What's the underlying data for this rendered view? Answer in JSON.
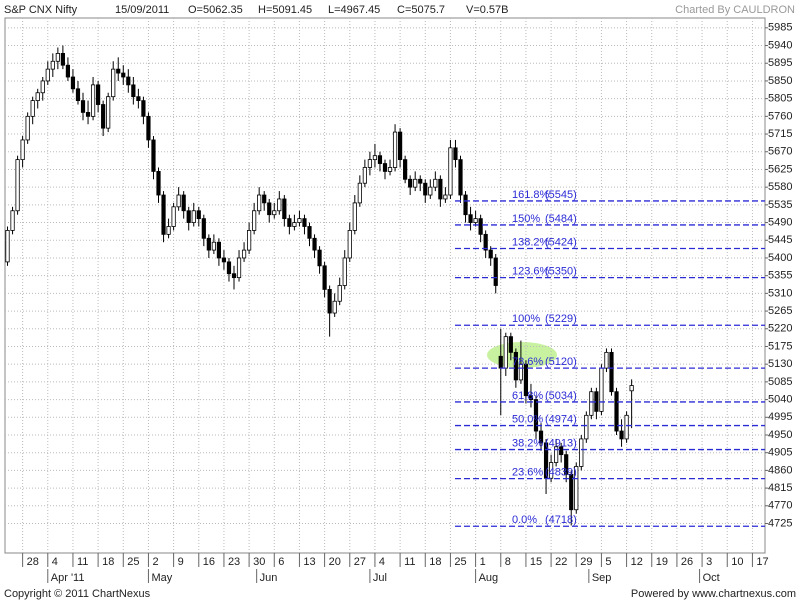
{
  "chart_data": {
    "type": "candlestick",
    "title": "S&P CNX Nifty",
    "date": "15/09/2011",
    "quote": [
      "O=5062.35",
      "H=5091.45",
      "L=4967.45",
      "C=5075.7",
      "V=0.57B"
    ],
    "credit": "Charted By CAULDRON",
    "up_color": "#ffffff",
    "down_color": "#000000",
    "grid": true,
    "ylim": [
      4650,
      6010
    ],
    "yticks": [
      4725,
      4770,
      4815,
      4860,
      4905,
      4950,
      4995,
      5040,
      5085,
      5130,
      5175,
      5220,
      5265,
      5310,
      5355,
      5400,
      5445,
      5490,
      5535,
      5580,
      5625,
      5670,
      5715,
      5760,
      5805,
      5850,
      5895,
      5940,
      5985
    ],
    "xlim": [
      -0.5,
      150.5
    ],
    "xticks": [
      {
        "value": 3,
        "label": "28"
      },
      {
        "value": 8,
        "label": "4"
      },
      {
        "value": 13,
        "label": "11"
      },
      {
        "value": 18,
        "label": "18"
      },
      {
        "value": 23,
        "label": "25"
      },
      {
        "value": 28,
        "label": "2"
      },
      {
        "value": 33,
        "label": "9"
      },
      {
        "value": 38,
        "label": "16"
      },
      {
        "value": 43,
        "label": "23"
      },
      {
        "value": 48,
        "label": "30"
      },
      {
        "value": 53,
        "label": "6"
      },
      {
        "value": 58,
        "label": "13"
      },
      {
        "value": 63,
        "label": "20"
      },
      {
        "value": 68,
        "label": "27"
      },
      {
        "value": 73,
        "label": "4"
      },
      {
        "value": 78,
        "label": "11"
      },
      {
        "value": 83,
        "label": "18"
      },
      {
        "value": 88,
        "label": "25"
      },
      {
        "value": 93,
        "label": "1"
      },
      {
        "value": 98,
        "label": "8"
      },
      {
        "value": 103,
        "label": "15"
      },
      {
        "value": 108,
        "label": "22"
      },
      {
        "value": 113,
        "label": "29"
      },
      {
        "value": 118,
        "label": "5"
      },
      {
        "value": 123,
        "label": "12"
      },
      {
        "value": 128,
        "label": "19"
      },
      {
        "value": 133,
        "label": "26"
      },
      {
        "value": 138,
        "label": "3"
      },
      {
        "value": 143,
        "label": "10"
      },
      {
        "value": 148,
        "label": "17"
      }
    ],
    "month_ticks": [
      {
        "value": 8,
        "label": "Apr '11"
      },
      {
        "value": 28,
        "label": "May"
      },
      {
        "value": 49.5,
        "label": "Jun"
      },
      {
        "value": 72,
        "label": "Jul"
      },
      {
        "value": 93,
        "label": "Aug"
      },
      {
        "value": 115.5,
        "label": "Sep"
      },
      {
        "value": 137.5,
        "label": "Oct"
      }
    ],
    "ohlc": [
      [
        5390,
        5480,
        5380,
        5470
      ],
      [
        5470,
        5530,
        5460,
        5520
      ],
      [
        5520,
        5660,
        5510,
        5650
      ],
      [
        5650,
        5710,
        5630,
        5700
      ],
      [
        5700,
        5770,
        5690,
        5760
      ],
      [
        5760,
        5810,
        5740,
        5800
      ],
      [
        5800,
        5830,
        5780,
        5820
      ],
      [
        5820,
        5860,
        5800,
        5850
      ],
      [
        5850,
        5900,
        5840,
        5880
      ],
      [
        5880,
        5920,
        5860,
        5900
      ],
      [
        5900,
        5935,
        5880,
        5920
      ],
      [
        5920,
        5940,
        5880,
        5890
      ],
      [
        5890,
        5910,
        5850,
        5860
      ],
      [
        5860,
        5880,
        5820,
        5830
      ],
      [
        5830,
        5850,
        5790,
        5800
      ],
      [
        5800,
        5820,
        5750,
        5770
      ],
      [
        5770,
        5800,
        5740,
        5760
      ],
      [
        5760,
        5860,
        5750,
        5840
      ],
      [
        5840,
        5850,
        5770,
        5790
      ],
      [
        5790,
        5800,
        5710,
        5730
      ],
      [
        5730,
        5820,
        5720,
        5810
      ],
      [
        5810,
        5900,
        5800,
        5880
      ],
      [
        5880,
        5910,
        5850,
        5870
      ],
      [
        5870,
        5890,
        5840,
        5860
      ],
      [
        5860,
        5880,
        5820,
        5840
      ],
      [
        5840,
        5860,
        5790,
        5810
      ],
      [
        5810,
        5830,
        5780,
        5800
      ],
      [
        5800,
        5810,
        5740,
        5760
      ],
      [
        5760,
        5770,
        5680,
        5700
      ],
      [
        5700,
        5710,
        5600,
        5620
      ],
      [
        5620,
        5630,
        5540,
        5560
      ],
      [
        5560,
        5570,
        5440,
        5460
      ],
      [
        5460,
        5500,
        5450,
        5480
      ],
      [
        5480,
        5540,
        5470,
        5530
      ],
      [
        5530,
        5580,
        5520,
        5560
      ],
      [
        5560,
        5570,
        5500,
        5520
      ],
      [
        5520,
        5530,
        5470,
        5490
      ],
      [
        5490,
        5540,
        5480,
        5520
      ],
      [
        5520,
        5530,
        5480,
        5500
      ],
      [
        5500,
        5510,
        5430,
        5450
      ],
      [
        5450,
        5460,
        5400,
        5420
      ],
      [
        5420,
        5460,
        5410,
        5440
      ],
      [
        5440,
        5450,
        5380,
        5400
      ],
      [
        5400,
        5420,
        5370,
        5390
      ],
      [
        5390,
        5400,
        5340,
        5360
      ],
      [
        5360,
        5380,
        5320,
        5350
      ],
      [
        5350,
        5420,
        5340,
        5400
      ],
      [
        5400,
        5440,
        5390,
        5420
      ],
      [
        5420,
        5490,
        5410,
        5470
      ],
      [
        5470,
        5540,
        5460,
        5520
      ],
      [
        5520,
        5580,
        5510,
        5560
      ],
      [
        5560,
        5570,
        5520,
        5540
      ],
      [
        5540,
        5550,
        5490,
        5510
      ],
      [
        5510,
        5540,
        5500,
        5520
      ],
      [
        5520,
        5570,
        5510,
        5550
      ],
      [
        5550,
        5560,
        5480,
        5500
      ],
      [
        5500,
        5510,
        5460,
        5480
      ],
      [
        5480,
        5510,
        5470,
        5490
      ],
      [
        5490,
        5520,
        5480,
        5500
      ],
      [
        5500,
        5510,
        5460,
        5480
      ],
      [
        5480,
        5490,
        5430,
        5450
      ],
      [
        5450,
        5460,
        5400,
        5420
      ],
      [
        5420,
        5430,
        5360,
        5380
      ],
      [
        5380,
        5390,
        5300,
        5320
      ],
      [
        5320,
        5330,
        5200,
        5260
      ],
      [
        5260,
        5310,
        5250,
        5290
      ],
      [
        5290,
        5350,
        5280,
        5330
      ],
      [
        5330,
        5420,
        5320,
        5400
      ],
      [
        5400,
        5490,
        5390,
        5470
      ],
      [
        5470,
        5560,
        5460,
        5540
      ],
      [
        5540,
        5610,
        5530,
        5590
      ],
      [
        5590,
        5650,
        5580,
        5630
      ],
      [
        5630,
        5670,
        5610,
        5650
      ],
      [
        5650,
        5690,
        5630,
        5660
      ],
      [
        5660,
        5670,
        5620,
        5640
      ],
      [
        5640,
        5650,
        5600,
        5620
      ],
      [
        5620,
        5650,
        5610,
        5630
      ],
      [
        5630,
        5740,
        5620,
        5720
      ],
      [
        5720,
        5730,
        5630,
        5650
      ],
      [
        5650,
        5660,
        5590,
        5600
      ],
      [
        5600,
        5610,
        5560,
        5580
      ],
      [
        5580,
        5620,
        5570,
        5600
      ],
      [
        5600,
        5610,
        5570,
        5590
      ],
      [
        5590,
        5600,
        5540,
        5560
      ],
      [
        5560,
        5600,
        5550,
        5580
      ],
      [
        5580,
        5620,
        5570,
        5600
      ],
      [
        5600,
        5610,
        5530,
        5550
      ],
      [
        5550,
        5580,
        5540,
        5560
      ],
      [
        5560,
        5700,
        5550,
        5680
      ],
      [
        5680,
        5700,
        5630,
        5650
      ],
      [
        5650,
        5660,
        5540,
        5560
      ],
      [
        5560,
        5570,
        5490,
        5510
      ],
      [
        5510,
        5530,
        5470,
        5490
      ],
      [
        5490,
        5520,
        5480,
        5500
      ],
      [
        5500,
        5510,
        5440,
        5460
      ],
      [
        5460,
        5470,
        5400,
        5420
      ],
      [
        5420,
        5430,
        5380,
        5400
      ],
      [
        5400,
        5410,
        5310,
        5330
      ],
      [
        5150,
        5220,
        5000,
        5120
      ],
      [
        5120,
        5210,
        5100,
        5200
      ],
      [
        5200,
        5210,
        5140,
        5160
      ],
      [
        5160,
        5170,
        5070,
        5090
      ],
      [
        5090,
        5190,
        5080,
        5130
      ],
      [
        5130,
        5140,
        5030,
        5050
      ],
      [
        5050,
        5080,
        5020,
        5040
      ],
      [
        5040,
        5050,
        4940,
        4960
      ],
      [
        4960,
        4980,
        4910,
        4930
      ],
      [
        4930,
        4940,
        4800,
        4840
      ],
      [
        4840,
        4900,
        4830,
        4880
      ],
      [
        4880,
        4940,
        4870,
        4920
      ],
      [
        4920,
        4930,
        4880,
        4900
      ],
      [
        4900,
        4910,
        4830,
        4850
      ],
      [
        4850,
        4860,
        4720,
        4760
      ],
      [
        4760,
        4880,
        4750,
        4870
      ],
      [
        4870,
        4950,
        4860,
        4940
      ],
      [
        4940,
        5010,
        4930,
        5000
      ],
      [
        5000,
        5070,
        4990,
        5060
      ],
      [
        5060,
        5070,
        4990,
        5010
      ],
      [
        5010,
        5130,
        5000,
        5120
      ],
      [
        5120,
        5170,
        5110,
        5160
      ],
      [
        5160,
        5170,
        5050,
        5060
      ],
      [
        5060,
        5070,
        4950,
        4960
      ],
      [
        4960,
        4990,
        4920,
        4940
      ],
      [
        4940,
        5010,
        4930,
        5000
      ],
      [
        5062.35,
        5091.45,
        4967.45,
        5075.7
      ]
    ],
    "fib": {
      "color": "#2b2bd6",
      "levels": [
        "161.8%",
        "150%",
        "138.2%",
        "123.6%",
        "100%",
        "78.6%",
        "61.8%",
        "50.0%",
        "38.2%",
        "23.6%",
        "0.0%"
      ],
      "values": [
        5545,
        5484,
        5424,
        5350,
        5229,
        5120,
        5034,
        4974,
        4913,
        4839,
        4718
      ],
      "value_labels": [
        "(5545)",
        "(5484)",
        "(5424)",
        "(5350)",
        "(5229)",
        "(5120)",
        "(5034)",
        "(4974)",
        "(4913)",
        "(4839)",
        "(4718)"
      ]
    }
  },
  "footer": {
    "copyright": "Copyright © 2011 ChartNexus",
    "powered": "Powered by www.chartnexus.com"
  }
}
